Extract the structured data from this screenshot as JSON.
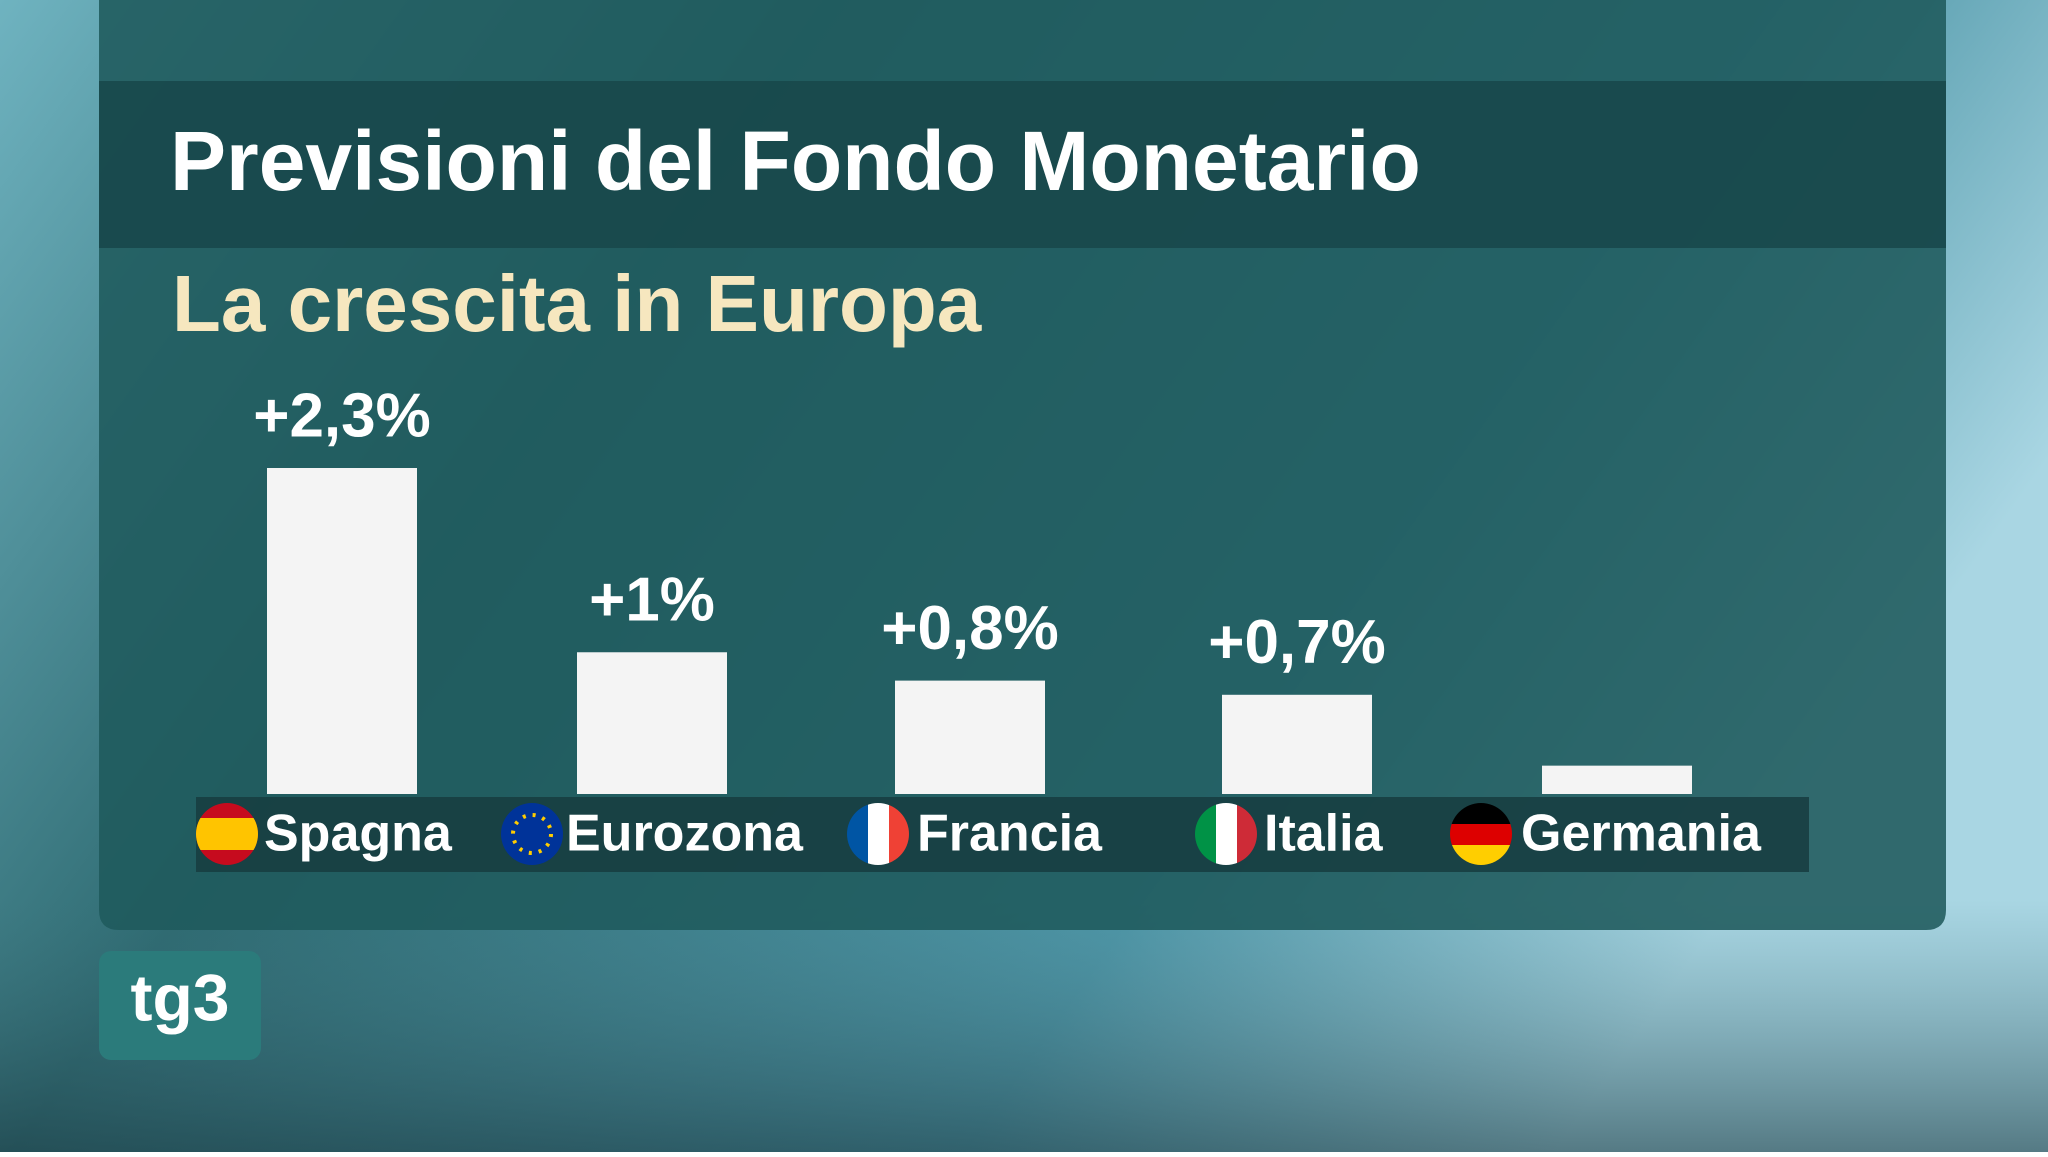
{
  "chart_data": {
    "type": "bar",
    "title": "Previsioni del Fondo Monetario",
    "subtitle": "La crescita in Europa",
    "categories": [
      "Spagna",
      "Eurozona",
      "Francia",
      "Italia",
      "Germania"
    ],
    "values": [
      2.3,
      1,
      0.8,
      0.7,
      0.2
    ],
    "value_labels": [
      "+2,3%",
      "+1%",
      "+0,8%",
      "+0,7%",
      null
    ],
    "color": "#f4f4f4"
  },
  "logo": "tg3"
}
